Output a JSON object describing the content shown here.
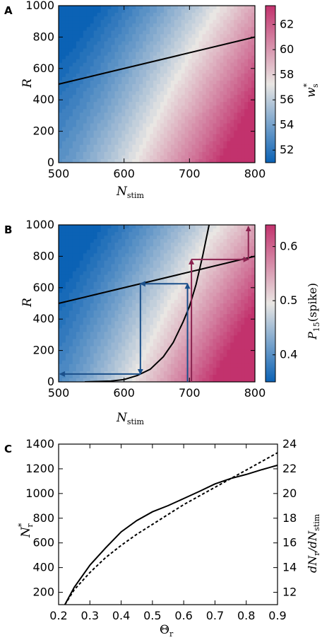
{
  "chart_data": [
    {
      "panel": "A",
      "type": "heatmap",
      "xlabel_main": "N",
      "xlabel_sub": "stim",
      "ylabel": "R",
      "xlim": [
        500,
        800
      ],
      "ylim": [
        0,
        1000
      ],
      "xticks": [
        "500",
        "600",
        "700",
        "800"
      ],
      "yticks": [
        "0",
        "200",
        "400",
        "600",
        "800",
        "1000"
      ],
      "colorbar": {
        "label_main": "w",
        "label_sup": "*",
        "label_sub": "s",
        "range": [
          51,
          63.5
        ],
        "ticks": [
          "52",
          "54",
          "56",
          "58",
          "60",
          "62"
        ],
        "tick_values": [
          52,
          54,
          56,
          58,
          60,
          62
        ],
        "colors": [
          "#0b62b5",
          "#e9e6e3",
          "#c2326d"
        ]
      },
      "line": {
        "x": [
          500,
          800
        ],
        "y": [
          500,
          800
        ]
      }
    },
    {
      "panel": "B",
      "type": "heatmap",
      "xlabel_main": "N",
      "xlabel_sub": "stim",
      "ylabel": "R",
      "xlim": [
        500,
        800
      ],
      "ylim": [
        0,
        1000
      ],
      "xticks": [
        "500",
        "600",
        "700",
        "800"
      ],
      "yticks": [
        "0",
        "200",
        "400",
        "600",
        "800",
        "1000"
      ],
      "colorbar": {
        "label_main": "P",
        "label_sub": "15",
        "label_rest": "(spike)",
        "range": [
          0.35,
          0.64
        ],
        "ticks": [
          "0.4",
          "0.5",
          "0.6"
        ],
        "tick_values": [
          0.4,
          0.5,
          0.6
        ],
        "colors": [
          "#0b62b5",
          "#e9e6e3",
          "#c2326d"
        ]
      },
      "line": {
        "x": [
          500,
          800
        ],
        "y": [
          500,
          800
        ]
      },
      "curve": {
        "x": [
          540,
          580,
          600,
          620,
          640,
          660,
          675,
          690,
          700,
          710,
          720,
          730
        ],
        "y": [
          0,
          5,
          15,
          40,
          80,
          160,
          250,
          380,
          480,
          620,
          800,
          1000
        ]
      },
      "arrows_blue": [
        {
          "from": [
            697,
            0
          ],
          "to": [
            697,
            625
          ]
        },
        {
          "from": [
            697,
            625
          ],
          "to": [
            625,
            625
          ]
        },
        {
          "from": [
            625,
            625
          ],
          "to": [
            625,
            50
          ]
        },
        {
          "from": [
            625,
            50
          ],
          "to": [
            502,
            50
          ]
        }
      ],
      "arrows_red": [
        {
          "from": [
            703,
            0
          ],
          "to": [
            703,
            780
          ]
        },
        {
          "from": [
            703,
            780
          ],
          "to": [
            790,
            780
          ]
        },
        {
          "from": [
            790,
            780
          ],
          "to": [
            790,
            990
          ]
        }
      ],
      "arrow_colors": {
        "blue": "#1a4f8a",
        "red": "#8b2350"
      }
    },
    {
      "panel": "C",
      "type": "line",
      "xlabel_main": "Θ",
      "xlabel_sub": "r",
      "ylabel_left_main": "N",
      "ylabel_left_sup": "*",
      "ylabel_left_sub": "r",
      "ylabel_right": "dN_r/dN_stim",
      "xlim": [
        0.2,
        0.9
      ],
      "ylim_left": [
        100,
        1400
      ],
      "ylim_right": [
        11,
        24
      ],
      "xticks": [
        "0.2",
        "0.3",
        "0.4",
        "0.5",
        "0.6",
        "0.7",
        "0.8",
        "0.9"
      ],
      "yticks_left": [
        "200",
        "400",
        "600",
        "800",
        "1000",
        "1200",
        "1400"
      ],
      "yticks_right": [
        "12",
        "14",
        "16",
        "18",
        "20",
        "22",
        "24"
      ],
      "series": [
        {
          "style": "solid",
          "axis": "left",
          "x": [
            0.22,
            0.25,
            0.3,
            0.35,
            0.4,
            0.45,
            0.5,
            0.55,
            0.6,
            0.65,
            0.7,
            0.75,
            0.8,
            0.85,
            0.9
          ],
          "y": [
            100,
            250,
            430,
            560,
            680,
            770,
            850,
            910,
            970,
            1020,
            1070,
            1110,
            1150,
            1200,
            1240
          ]
        },
        {
          "style": "dashed",
          "axis": "right",
          "x": [
            0.22,
            0.25,
            0.3,
            0.35,
            0.4,
            0.45,
            0.5,
            0.55,
            0.6,
            0.65,
            0.7,
            0.75,
            0.8,
            0.85,
            0.9
          ],
          "y": [
            11,
            12.2,
            13.6,
            14.8,
            15.8,
            16.7,
            17.5,
            18.3,
            19.1,
            19.8,
            20.5,
            21.2,
            21.9,
            22.6,
            23.3
          ]
        }
      ]
    }
  ],
  "labels": {
    "a": "A",
    "b": "B",
    "c": "C"
  }
}
